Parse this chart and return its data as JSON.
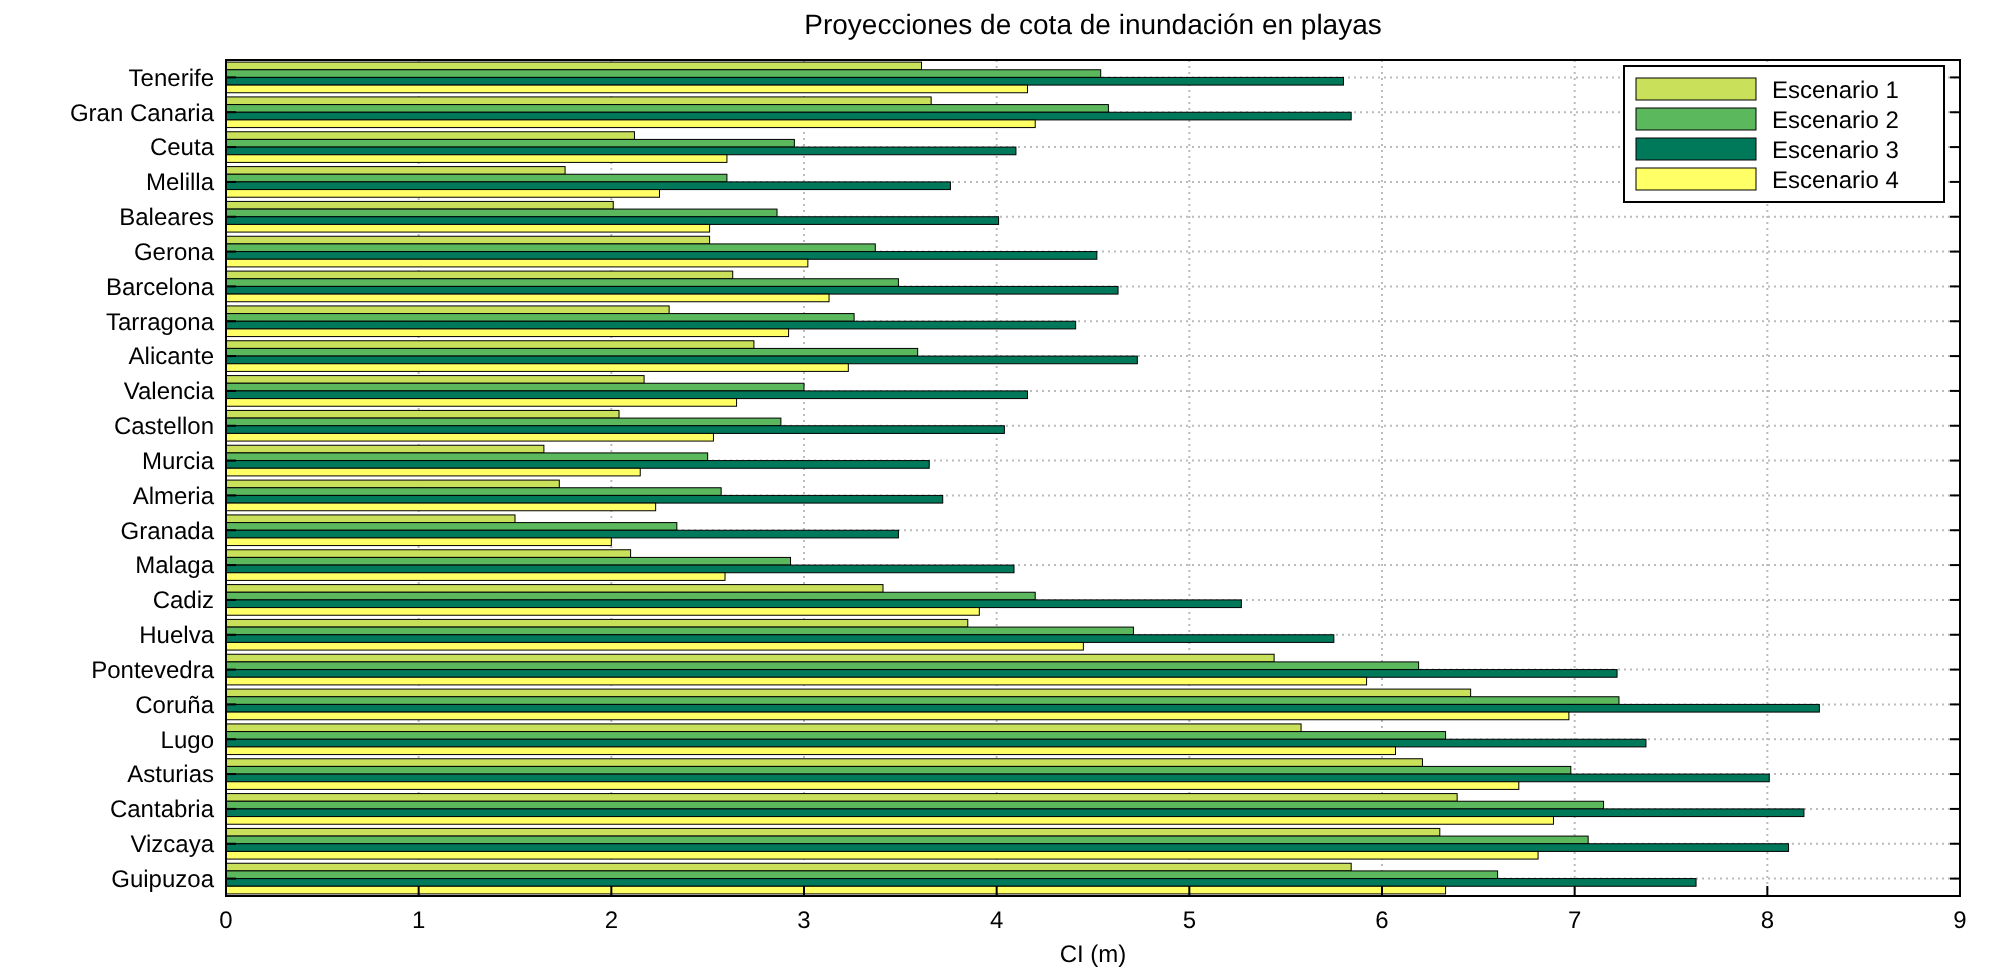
{
  "chart_data": {
    "type": "bar",
    "orientation": "horizontal",
    "title": "Proyecciones de cota de inundación en playas",
    "xlabel": "CI (m)",
    "categories": [
      "Tenerife",
      "Gran Canaria",
      "Ceuta",
      "Melilla",
      "Baleares",
      "Gerona",
      "Barcelona",
      "Tarragona",
      "Alicante",
      "Valencia",
      "Castellon",
      "Murcia",
      "Almeria",
      "Granada",
      "Malaga",
      "Cadiz",
      "Huelva",
      "Pontevedra",
      "Coruña",
      "Lugo",
      "Asturias",
      "Cantabria",
      "Vizcaya",
      "Guipuzoa"
    ],
    "series": [
      {
        "name": "Escenario 1",
        "color": "#c8e05a",
        "values": [
          3.61,
          3.66,
          2.12,
          1.76,
          2.01,
          2.51,
          2.63,
          2.3,
          2.74,
          2.17,
          2.04,
          1.65,
          1.73,
          1.5,
          2.1,
          3.41,
          3.85,
          5.44,
          6.46,
          5.58,
          6.21,
          6.39,
          6.3,
          5.84
        ]
      },
      {
        "name": "Escenario 2",
        "color": "#5cb85c",
        "values": [
          4.54,
          4.58,
          2.95,
          2.6,
          2.86,
          3.37,
          3.49,
          3.26,
          3.59,
          3.0,
          2.88,
          2.5,
          2.57,
          2.34,
          2.93,
          4.2,
          4.71,
          6.19,
          7.23,
          6.33,
          6.98,
          7.15,
          7.07,
          6.6
        ]
      },
      {
        "name": "Escenario 3",
        "color": "#00785a",
        "values": [
          5.8,
          5.84,
          4.1,
          3.76,
          4.01,
          4.52,
          4.63,
          4.41,
          4.73,
          4.16,
          4.04,
          3.65,
          3.72,
          3.49,
          4.09,
          5.27,
          5.75,
          7.22,
          8.27,
          7.37,
          8.01,
          8.19,
          8.11,
          7.63
        ]
      },
      {
        "name": "Escenario 4",
        "color": "#ffff66",
        "values": [
          4.16,
          4.2,
          2.6,
          2.25,
          2.51,
          3.02,
          3.13,
          2.92,
          3.23,
          2.65,
          2.53,
          2.15,
          2.23,
          2.0,
          2.59,
          3.91,
          4.45,
          5.92,
          6.97,
          6.07,
          6.71,
          6.89,
          6.81,
          6.33
        ]
      }
    ],
    "xlim": [
      0,
      9
    ],
    "xticks": [
      0,
      1,
      2,
      3,
      4,
      5,
      6,
      7,
      8,
      9
    ],
    "grid": true,
    "legend": "top right"
  }
}
